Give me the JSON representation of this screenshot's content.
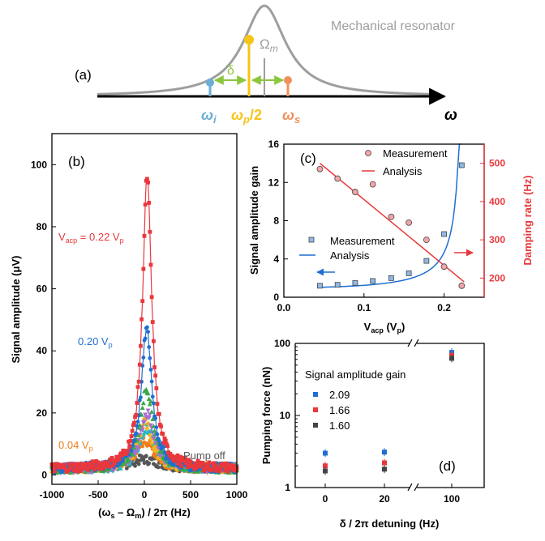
{
  "panel_a": {
    "label": "(a)",
    "resonator_label": "Mechanical resonator",
    "omega_axis": "ω",
    "omega_i": "ω",
    "omega_i_sub": "i",
    "omega_p": "ω",
    "omega_p_sub": "p",
    "omega_p_suffix": "/2",
    "omega_s": "ω",
    "omega_s_sub": "s",
    "Omega_m": "Ω",
    "Omega_m_sub": "m",
    "delta": "δ",
    "colors": {
      "curve": "#9e9e9e",
      "idler": "#6aaed6",
      "pump": "#f5c518",
      "signal": "#f0915a",
      "delta": "#8cc63f",
      "axis": "#000000"
    }
  },
  "chart_data": [
    {
      "panel": "(b)",
      "type": "scatter",
      "xlabel": "(ω",
      "xlabel_parts": [
        "(ω",
        "s",
        " – Ω",
        "m",
        ") / 2π (Hz)"
      ],
      "ylabel": "Signal amplitude (μV)",
      "xlim": [
        -1000,
        1000
      ],
      "ylim": [
        -3,
        110
      ],
      "xticks": [
        -1000,
        -500,
        0,
        500,
        1000
      ],
      "yticks": [
        0,
        20,
        40,
        60,
        80,
        100
      ],
      "annotations": [
        {
          "text": "V",
          "sub": "acp",
          "rest": " = 0.22 V",
          "sub2": "p",
          "color": "#e8383d"
        },
        {
          "text": "0.20 V",
          "sub": "p",
          "color": "#1f6fd1"
        },
        {
          "text": "0.04 V",
          "sub": "p",
          "color": "#f07d1a"
        },
        {
          "text": "Pump off",
          "color": "#555555"
        }
      ],
      "series": [
        {
          "name": "V_acp = 0.22 V_p",
          "color": "#e8383d",
          "marker": "square",
          "line": true,
          "center": 30,
          "peak": 94,
          "width": 60
        },
        {
          "name": "0.20 V_p",
          "color": "#1f6fd1",
          "marker": "circle",
          "line": true,
          "center": 25,
          "peak": 45,
          "width": 70
        },
        {
          "color": "#3aa84a",
          "marker": "triangle-up",
          "center": 25,
          "peak": 26,
          "width": 85
        },
        {
          "color": "#a86cd8",
          "marker": "triangle-down",
          "center": 30,
          "peak": 18,
          "width": 90
        },
        {
          "color": "#f2b51c",
          "marker": "diamond",
          "center": 10,
          "peak": 15,
          "width": 95
        },
        {
          "color": "#2bb6c2",
          "marker": "triangle-left",
          "center": 20,
          "peak": 13,
          "width": 100
        },
        {
          "name": "0.04 V_p",
          "color": "#f07d1a",
          "marker": "circle",
          "center": 10,
          "peak": 9,
          "width": 120
        },
        {
          "name": "Pump off",
          "color": "#555555",
          "marker": "circle",
          "center": 0,
          "peak": 3,
          "width": 200
        }
      ]
    },
    {
      "panel": "(c)",
      "type": "scatter",
      "xlabel": "V",
      "xlabel_sub": "acp",
      "xlabel_rest": " (V",
      "xlabel_sub2": "p",
      "xlabel_end": ")",
      "ylabel": "Signal amplitude gain",
      "ylabel_right": "Damping rate (Hz)",
      "xlim": [
        0,
        0.25
      ],
      "ylim": [
        0,
        16
      ],
      "ylim_right": [
        150,
        550
      ],
      "xticks": [
        0.0,
        0.1,
        0.2
      ],
      "yticks": [
        0,
        4,
        8,
        12,
        16
      ],
      "yticks_right": [
        200,
        300,
        400,
        500
      ],
      "legend_top": [
        "Measurement",
        "Analysis"
      ],
      "legend_bottom": [
        "Measurement",
        "Analysis"
      ],
      "gain": {
        "color": "#1f6fd1",
        "x": [
          0.045,
          0.067,
          0.089,
          0.111,
          0.134,
          0.156,
          0.178,
          0.2,
          0.222
        ],
        "y": [
          1.2,
          1.3,
          1.5,
          1.7,
          2.0,
          2.5,
          3.8,
          6.6,
          13.8
        ]
      },
      "damping": {
        "color": "#e8383d",
        "x": [
          0.045,
          0.067,
          0.089,
          0.111,
          0.134,
          0.156,
          0.178,
          0.2,
          0.222
        ],
        "y": [
          485,
          460,
          425,
          445,
          360,
          345,
          300,
          230,
          180
        ],
        "fit": [
          [
            0.045,
            500
          ],
          [
            0.225,
            190
          ]
        ]
      }
    },
    {
      "panel": "(d)",
      "type": "scatter",
      "xlabel": "δ / 2π detuning (Hz)",
      "ylabel": "Pumping force (nN)",
      "yscale": "log",
      "ylim": [
        1,
        100
      ],
      "xticks": [
        "0",
        "20",
        "100"
      ],
      "yticks": [
        "1",
        "10",
        "100"
      ],
      "legend_title": "Signal amplitude gain",
      "series": [
        {
          "name": "2.09",
          "color": "#1f6fd1",
          "values": [
            3.0,
            3.1,
            75
          ]
        },
        {
          "name": "1.66",
          "color": "#e8383d",
          "values": [
            2.0,
            2.2,
            68
          ]
        },
        {
          "name": "1.60",
          "color": "#444444",
          "values": [
            1.7,
            1.8,
            62
          ]
        }
      ]
    }
  ]
}
